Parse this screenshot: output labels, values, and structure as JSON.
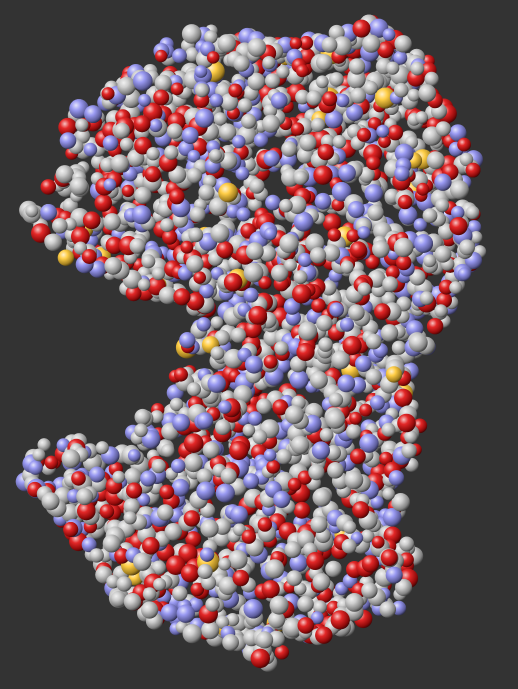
{
  "viewer": {
    "background": "#333333",
    "representation": "space-filling",
    "element_colors": {
      "carbon": "#c8c8c8",
      "oxygen": "#e01010",
      "nitrogen": "#8f8ff0",
      "sulfur": "#ffc832"
    }
  }
}
